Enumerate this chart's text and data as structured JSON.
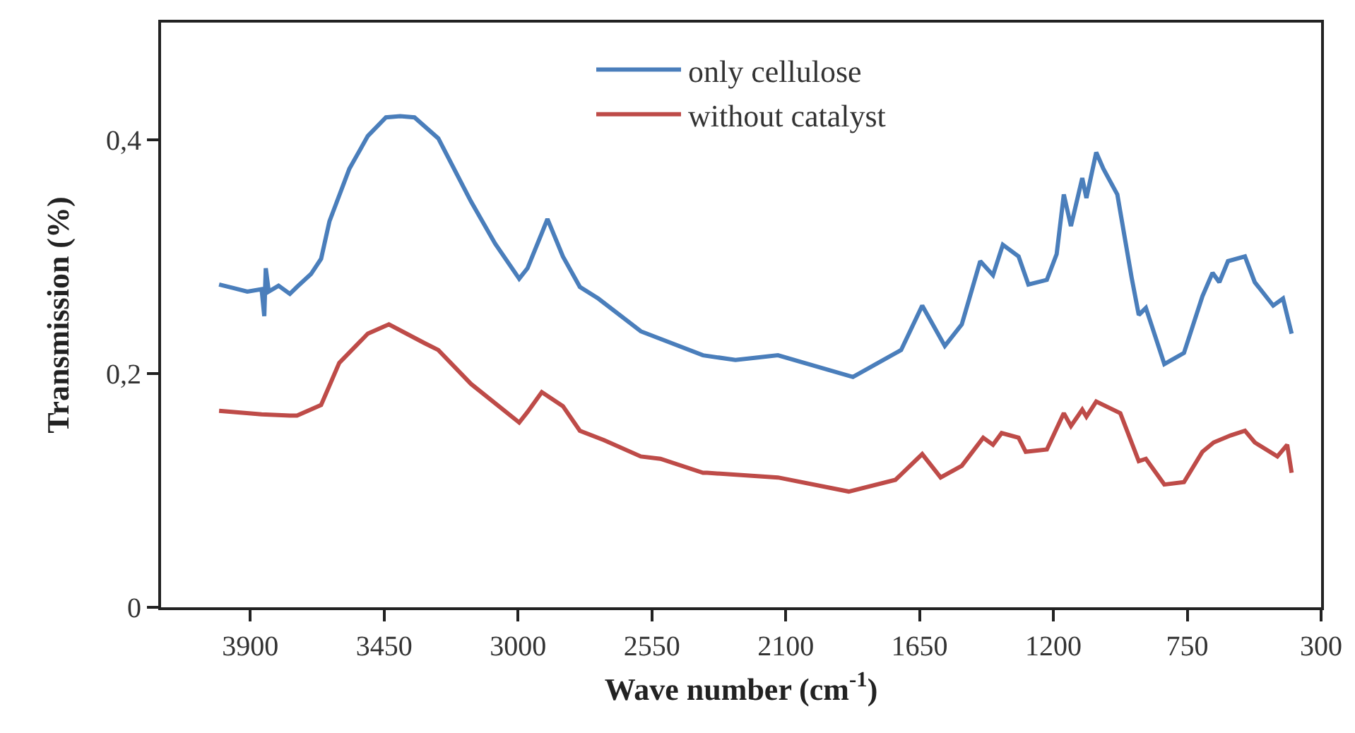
{
  "chart_data": {
    "type": "line",
    "xlabel": "Wave number (cm$^{-1}$)",
    "ylabel": "Transmission (%)",
    "xlim": [
      4200,
      300
    ],
    "xticks": [
      3900,
      3450,
      3000,
      2550,
      2100,
      1650,
      1200,
      750,
      300
    ],
    "ylim": [
      0,
      0.5
    ],
    "yticks": [
      0,
      {
        "value": 0.2,
        "label": "0,2"
      },
      {
        "value": 0.4,
        "label": "0,4"
      }
    ],
    "grid": false,
    "legend": "top",
    "marker": "none",
    "line_style": "solid",
    "series": [
      {
        "name": "only cellulose",
        "color": "#4a7ebb",
        "x": [
          4005,
          3957,
          3910,
          3862,
          3853,
          3848,
          3838,
          3805,
          3767,
          3743,
          3696,
          3662,
          3634,
          3567,
          3505,
          3444,
          3396,
          3348,
          3268,
          3158,
          3077,
          2996,
          2968,
          2920,
          2901,
          2849,
          2792,
          2730,
          2587,
          2378,
          2269,
          2126,
          1874,
          1712,
          1641,
          1565,
          1508,
          1446,
          1403,
          1370,
          1317,
          1284,
          1222,
          1189,
          1165,
          1141,
          1103,
          1089,
          1056,
          1032,
          985,
          937,
          913,
          889,
          827,
          761,
          699,
          665,
          642,
          613,
          556,
          523,
          461,
          428,
          399
        ],
        "values": [
          0.276,
          0.273,
          0.27,
          0.272,
          0.249,
          0.29,
          0.27,
          0.275,
          0.268,
          0.274,
          0.285,
          0.298,
          0.33,
          0.375,
          0.403,
          0.419,
          0.42,
          0.419,
          0.401,
          0.347,
          0.311,
          0.281,
          0.29,
          0.32,
          0.332,
          0.3,
          0.274,
          0.264,
          0.236,
          0.2155,
          0.2115,
          0.2155,
          0.197,
          0.22,
          0.258,
          0.2235,
          0.242,
          0.296,
          0.284,
          0.31,
          0.3,
          0.276,
          0.28,
          0.302,
          0.353,
          0.326,
          0.367,
          0.35,
          0.389,
          0.375,
          0.353,
          0.282,
          0.25,
          0.256,
          0.208,
          0.2175,
          0.266,
          0.286,
          0.278,
          0.296,
          0.3,
          0.278,
          0.258,
          0.264,
          0.234
        ]
      },
      {
        "name": "without catalyst",
        "color": "#be4b48",
        "x": [
          4005,
          3862,
          3767,
          3743,
          3662,
          3601,
          3505,
          3434,
          3315,
          3268,
          3158,
          2996,
          2968,
          2920,
          2849,
          2792,
          2711,
          2587,
          2521,
          2378,
          2364,
          2126,
          1888,
          1731,
          1641,
          1579,
          1508,
          1436,
          1403,
          1374,
          1317,
          1293,
          1222,
          1165,
          1141,
          1103,
          1089,
          1056,
          975,
          913,
          889,
          827,
          761,
          699,
          661,
          604,
          556,
          523,
          447,
          414,
          399
        ],
        "values": [
          0.168,
          0.165,
          0.164,
          0.164,
          0.173,
          0.209,
          0.234,
          0.242,
          0.226,
          0.22,
          0.191,
          0.158,
          0.167,
          0.184,
          0.172,
          0.151,
          0.143,
          0.129,
          0.127,
          0.115,
          0.115,
          0.111,
          0.099,
          0.109,
          0.131,
          0.111,
          0.121,
          0.145,
          0.139,
          0.149,
          0.145,
          0.133,
          0.135,
          0.166,
          0.155,
          0.169,
          0.163,
          0.176,
          0.166,
          0.125,
          0.127,
          0.105,
          0.107,
          0.133,
          0.141,
          0.147,
          0.151,
          0.141,
          0.129,
          0.139,
          0.115
        ]
      }
    ]
  }
}
